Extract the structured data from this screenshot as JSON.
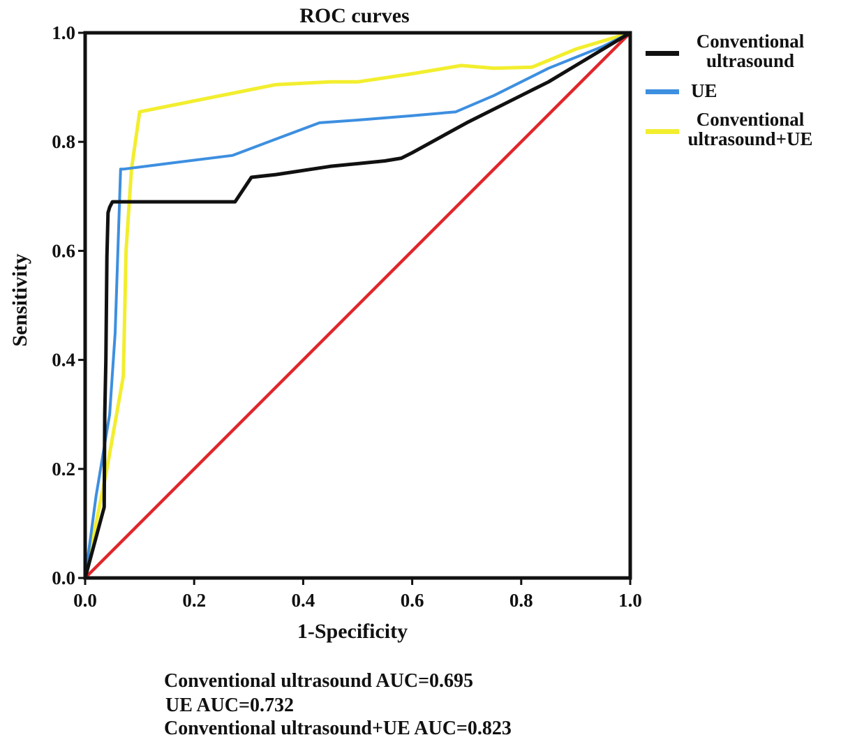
{
  "chart_data": {
    "type": "line",
    "title": "ROC curves",
    "xlabel": "1-Specificity",
    "ylabel": "Sensitivity",
    "xlim": [
      0,
      1
    ],
    "ylim": [
      0,
      1
    ],
    "xticks": [
      0.0,
      0.2,
      0.4,
      0.6,
      0.8,
      1.0
    ],
    "yticks": [
      0.0,
      0.2,
      0.4,
      0.6,
      0.8,
      1.0
    ],
    "xtick_labels": [
      "0.0",
      "0.2",
      "0.4",
      "0.6",
      "0.8",
      "1.0"
    ],
    "ytick_labels": [
      "0.0",
      "0.2",
      "0.4",
      "0.6",
      "0.8",
      "1.0"
    ],
    "grid": false,
    "legend_position": "right",
    "series": [
      {
        "name": "Conventional ultrasound",
        "legend_lines": [
          "Conventional",
          "ultrasound"
        ],
        "color": "#111111",
        "x": [
          0.0,
          0.035,
          0.036,
          0.038,
          0.04,
          0.042,
          0.045,
          0.05,
          0.1,
          0.2,
          0.275,
          0.305,
          0.35,
          0.45,
          0.55,
          0.58,
          0.6,
          0.7,
          0.8,
          0.85,
          0.9,
          1.0
        ],
        "y": [
          0.0,
          0.13,
          0.3,
          0.4,
          0.59,
          0.67,
          0.68,
          0.69,
          0.69,
          0.69,
          0.69,
          0.735,
          0.74,
          0.755,
          0.765,
          0.77,
          0.78,
          0.835,
          0.885,
          0.91,
          0.94,
          1.0
        ]
      },
      {
        "name": "UE",
        "legend_lines": [
          "UE"
        ],
        "color": "#3d8fe0",
        "x": [
          0.0,
          0.02,
          0.045,
          0.055,
          0.06,
          0.065,
          0.07,
          0.15,
          0.27,
          0.35,
          0.43,
          0.5,
          0.6,
          0.68,
          0.75,
          0.85,
          0.95,
          1.0
        ],
        "y": [
          0.0,
          0.15,
          0.3,
          0.45,
          0.6,
          0.75,
          0.75,
          0.76,
          0.775,
          0.805,
          0.835,
          0.84,
          0.848,
          0.855,
          0.885,
          0.935,
          0.975,
          1.0
        ]
      },
      {
        "name": "Conventional ultrasound+UE",
        "legend_lines": [
          "Conventional",
          "ultrasound+UE"
        ],
        "color": "#f2ee2e",
        "x": [
          0.0,
          0.04,
          0.07,
          0.075,
          0.085,
          0.1,
          0.2,
          0.3,
          0.35,
          0.45,
          0.5,
          0.6,
          0.69,
          0.75,
          0.82,
          0.9,
          1.0
        ],
        "y": [
          0.0,
          0.2,
          0.37,
          0.6,
          0.75,
          0.855,
          0.875,
          0.895,
          0.905,
          0.91,
          0.91,
          0.925,
          0.94,
          0.935,
          0.937,
          0.97,
          1.0
        ]
      },
      {
        "name": "Reference line",
        "legend_lines": [],
        "color": "#e0262b",
        "x": [
          0.0,
          1.0
        ],
        "y": [
          0.0,
          1.0
        ]
      }
    ],
    "annotations": [
      "Conventional ultrasound AUC=0.695",
      "UE AUC=0.732",
      "Conventional ultrasound+UE AUC=0.823"
    ]
  }
}
